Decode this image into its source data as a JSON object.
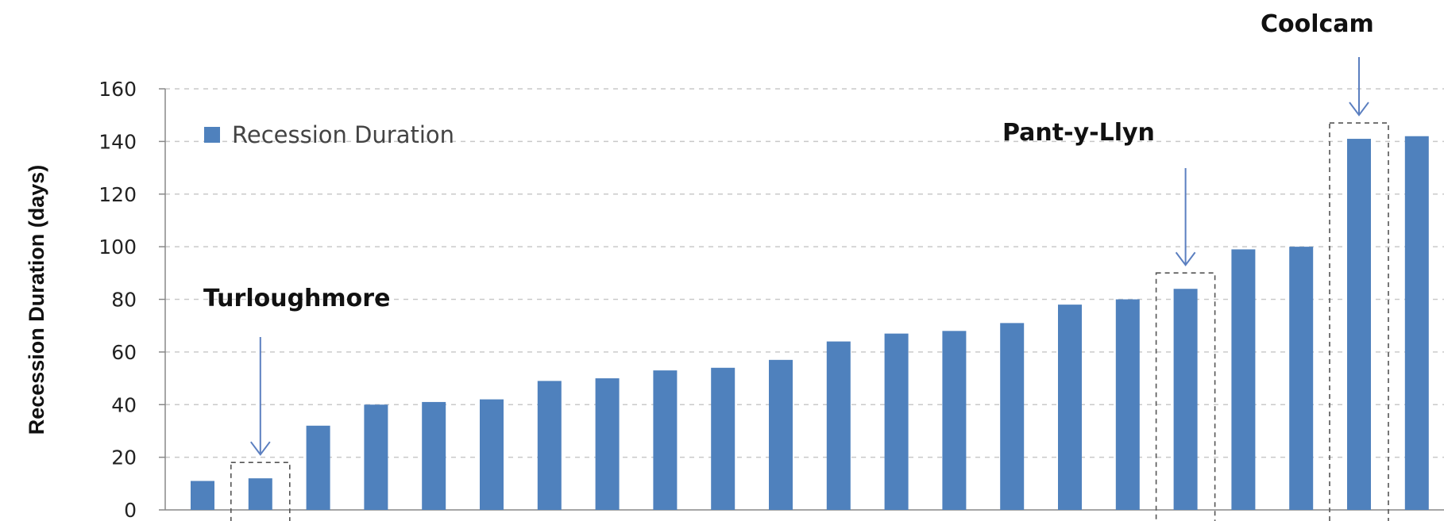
{
  "chart_data": {
    "type": "bar",
    "ylabel": "Recession Duration (days)",
    "xlabel": "",
    "ylim": [
      0,
      160
    ],
    "yticks": [
      0,
      20,
      40,
      60,
      80,
      100,
      120,
      140,
      160
    ],
    "grid": true,
    "legend_position": "top-left",
    "series": [
      {
        "name": "Recession Duration",
        "color": "#4F81BD",
        "values": [
          11,
          12,
          32,
          40,
          41,
          42,
          49,
          50,
          53,
          54,
          57,
          64,
          67,
          68,
          71,
          78,
          80,
          84,
          99,
          100,
          141,
          142
        ]
      }
    ],
    "annotations": [
      {
        "label": "Turloughmore",
        "bar_index": 1
      },
      {
        "label": "Pant-y-Llyn",
        "bar_index": 17
      },
      {
        "label": "Coolcam",
        "bar_index": 20
      }
    ]
  }
}
